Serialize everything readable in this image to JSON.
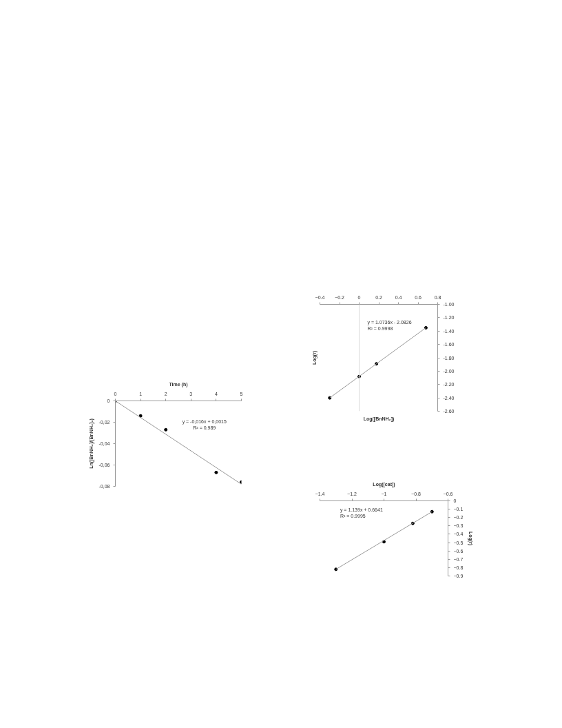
{
  "chart_data": [
    {
      "type": "scatter",
      "xlabel": "Time (h)",
      "ylabel": "Ln([BnNH₂]/[BnNH₂]₀)",
      "xlim": [
        0,
        5
      ],
      "xticks": [
        0,
        1,
        2,
        3,
        4,
        5
      ],
      "ylim": [
        -0.08,
        0
      ],
      "yticks": [
        0,
        {
          "value": -0.02,
          "label": "-0,02"
        },
        {
          "value": -0.04,
          "label": "-0,04"
        },
        {
          "value": -0.06,
          "label": "-0,06"
        },
        {
          "value": -0.08,
          "label": "-0,08"
        }
      ],
      "annotations": [
        "y = -0,016x + 0,0015",
        "R² = 0,989"
      ],
      "series": [
        {
          "color": "#000000",
          "marker": "circle",
          "x": [
            0,
            1,
            2,
            4,
            5
          ],
          "values": [
            0,
            -0.014,
            -0.027,
            -0.067,
            -0.076
          ]
        },
        {
          "type": "line",
          "color": "#999999",
          "x": [
            0,
            5
          ],
          "values": [
            0,
            -0.078
          ]
        }
      ]
    },
    {
      "type": "scatter",
      "xlabel": "Log([BnNH₂])",
      "ylabel": "Log(r)",
      "xlim": [
        -0.4,
        0.8
      ],
      "xticks": [
        -0.4,
        -0.2,
        0,
        0.2,
        0.4,
        0.6,
        0.8
      ],
      "ylim": [
        -2.6,
        -1.0
      ],
      "yticks": [
        {
          "value": -1.0,
          "label": "-1.00"
        },
        {
          "value": -1.2,
          "label": "-1.20"
        },
        {
          "value": -1.4,
          "label": "-1.40"
        },
        {
          "value": -1.6,
          "label": "-1.60"
        },
        {
          "value": -1.8,
          "label": "-1.80"
        },
        {
          "value": -2.0,
          "label": "-2.00"
        },
        {
          "value": -2.2,
          "label": "-2.20"
        },
        {
          "value": -2.4,
          "label": "-2.40"
        },
        {
          "value": -2.6,
          "label": "-2.60"
        }
      ],
      "ref_lines": [
        {
          "axis": "x",
          "value": 0,
          "color": "#d9d9d9"
        }
      ],
      "annotations": [
        "y = 1.0736x - 2.0826",
        "R² = 0.9998"
      ],
      "series": [
        {
          "color": "#000000",
          "marker": "circle",
          "x": [
            -0.3,
            0,
            0.176,
            0.68
          ],
          "values": [
            -2.4,
            -2.08,
            -1.89,
            -1.35
          ]
        },
        {
          "type": "line",
          "color": "#999999",
          "x": [
            -0.3,
            0.68
          ],
          "values": [
            -2.4,
            -1.35
          ]
        }
      ]
    },
    {
      "type": "scatter",
      "xlabel": "Log([cat])",
      "ylabel": "Log(r)",
      "xlim": [
        -1.4,
        -0.6
      ],
      "xticks": [
        -1.4,
        -1.2,
        -1,
        -0.8,
        -0.6
      ],
      "ylim": [
        -0.9,
        0
      ],
      "yticks": [
        0,
        -0.1,
        -0.2,
        -0.3,
        -0.4,
        -0.5,
        -0.6,
        -0.7,
        -0.8,
        -0.9
      ],
      "annotations": [
        "y = 1.139x + 0.6641",
        "R² = 0.9995"
      ],
      "series": [
        {
          "color": "#000000",
          "marker": "circle",
          "x": [
            -1.3,
            -1,
            -0.82,
            -0.7
          ],
          "values": [
            -0.82,
            -0.49,
            -0.27,
            -0.13
          ]
        },
        {
          "type": "line",
          "color": "#999999",
          "x": [
            -1.3,
            -0.7
          ],
          "values": [
            -0.82,
            -0.13
          ]
        }
      ]
    }
  ]
}
